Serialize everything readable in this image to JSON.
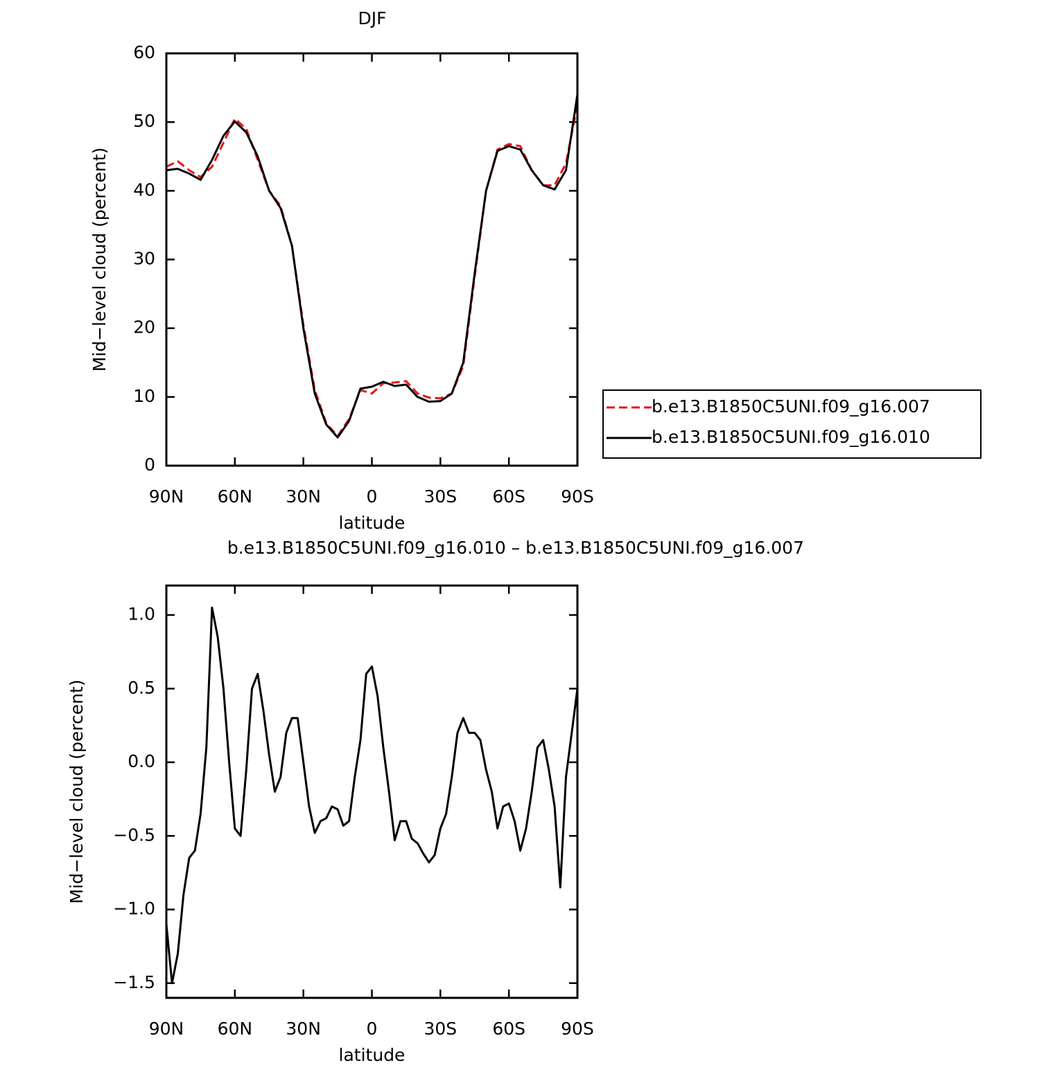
{
  "chart_data": [
    {
      "type": "line",
      "title": "DJF",
      "xlabel": "latitude",
      "ylabel": "Mid−level cloud (percent)",
      "x": [
        90,
        85,
        80,
        75,
        70,
        65,
        60,
        55,
        50,
        45,
        40,
        35,
        30,
        25,
        20,
        15,
        10,
        5,
        0,
        -5,
        -10,
        -15,
        -20,
        -25,
        -30,
        -35,
        -40,
        -45,
        -50,
        -55,
        -60,
        -65,
        -70,
        -75,
        -80,
        -85,
        -90
      ],
      "series": [
        {
          "name": "b.e13.B1850C5UNI.f09_g16.007",
          "color": "#e8141c",
          "style": "dashed",
          "values": [
            43.5,
            44.3,
            43,
            42,
            43.5,
            47,
            50.5,
            49,
            44.5,
            40,
            37.8,
            32,
            20.5,
            11,
            6.2,
            4.3,
            6.8,
            11,
            10.5,
            12,
            12.1,
            12.3,
            10.5,
            9.9,
            9.8,
            10.5,
            14.5,
            27.5,
            40,
            46,
            46.8,
            46.5,
            43,
            40.8,
            40.8,
            44,
            52.5
          ]
        },
        {
          "name": "b.e13.B1850C5UNI.f09_g16.010",
          "color": "#000000",
          "style": "solid",
          "values": [
            43,
            43.2,
            42.5,
            41.6,
            44.5,
            48,
            50.1,
            48.5,
            45,
            40,
            37.5,
            32,
            20,
            10.5,
            6,
            4.1,
            6.5,
            11.2,
            11.5,
            12.2,
            11.6,
            11.8,
            10,
            9.3,
            9.4,
            10.5,
            15,
            28,
            40,
            45.8,
            46.5,
            46,
            43,
            40.8,
            40.2,
            43,
            54
          ]
        }
      ],
      "xlim": [
        90,
        -90
      ],
      "xticks": [
        {
          "value": 90,
          "label": "90N"
        },
        {
          "value": 60,
          "label": "60N"
        },
        {
          "value": 30,
          "label": "30N"
        },
        0,
        {
          "value": -30,
          "label": "30S"
        },
        {
          "value": -60,
          "label": "60S"
        },
        {
          "value": -90,
          "label": "90S"
        }
      ],
      "ylim": [
        0,
        60
      ],
      "yticks": [
        0,
        10,
        20,
        30,
        40,
        50,
        60
      ],
      "legend": "right"
    },
    {
      "type": "line",
      "title": "b.e13.B1850C5UNI.f09_g16.010 – b.e13.B1850C5UNI.f09_g16.007",
      "xlabel": "latitude",
      "ylabel": "Mid−level cloud (percent)",
      "x": [
        90,
        87.5,
        85,
        82.5,
        80,
        77.5,
        75,
        72.5,
        70,
        67.5,
        65,
        62.5,
        60,
        57.5,
        55,
        52.5,
        50,
        47.5,
        45,
        42.5,
        40,
        37.5,
        35,
        32.5,
        30,
        27.5,
        25,
        22.5,
        20,
        17.5,
        15,
        12.5,
        10,
        7.5,
        5,
        2.5,
        0,
        -2.5,
        -5,
        -7.5,
        -10,
        -12.5,
        -15,
        -17.5,
        -20,
        -22.5,
        -25,
        -27.5,
        -30,
        -32.5,
        -35,
        -37.5,
        -40,
        -42.5,
        -45,
        -47.5,
        -50,
        -52.5,
        -55,
        -57.5,
        -60,
        -62.5,
        -65,
        -67.5,
        -70,
        -72.5,
        -75,
        -77.5,
        -80,
        -82.5,
        -85,
        -87.5,
        -90
      ],
      "values": [
        -1.1,
        -1.5,
        -1.3,
        -0.9,
        -0.65,
        -0.6,
        -0.35,
        0.1,
        1.05,
        0.85,
        0.5,
        0.0,
        -0.45,
        -0.5,
        -0.05,
        0.5,
        0.6,
        0.35,
        0.05,
        -0.2,
        -0.1,
        0.2,
        0.3,
        0.3,
        0.0,
        -0.3,
        -0.48,
        -0.4,
        -0.38,
        -0.3,
        -0.32,
        -0.43,
        -0.4,
        -0.1,
        0.15,
        0.6,
        0.65,
        0.45,
        0.1,
        -0.2,
        -0.53,
        -0.4,
        -0.4,
        -0.52,
        -0.55,
        -0.62,
        -0.68,
        -0.63,
        -0.45,
        -0.35,
        -0.1,
        0.2,
        0.3,
        0.2,
        0.2,
        0.15,
        -0.05,
        -0.2,
        -0.45,
        -0.3,
        -0.28,
        -0.4,
        -0.6,
        -0.45,
        -0.2,
        0.1,
        0.15,
        -0.05,
        -0.3,
        -0.85,
        -0.1,
        0.2,
        0.5
      ],
      "color": "#000000",
      "xlim": [
        90,
        -90
      ],
      "xticks": [
        {
          "value": 90,
          "label": "90N"
        },
        {
          "value": 60,
          "label": "60N"
        },
        {
          "value": 30,
          "label": "30N"
        },
        0,
        {
          "value": -30,
          "label": "30S"
        },
        {
          "value": -60,
          "label": "60S"
        },
        {
          "value": -90,
          "label": "90S"
        }
      ],
      "ylim": [
        -1.6,
        1.2
      ],
      "yticks": [
        {
          "value": -1.5,
          "label": "−1.5"
        },
        {
          "value": -1.0,
          "label": "−1.0"
        },
        {
          "value": -0.5,
          "label": "−0.5"
        },
        {
          "value": 0,
          "label": "0.0"
        },
        0.5,
        {
          "value": 1.0,
          "label": "1.0"
        }
      ]
    }
  ]
}
